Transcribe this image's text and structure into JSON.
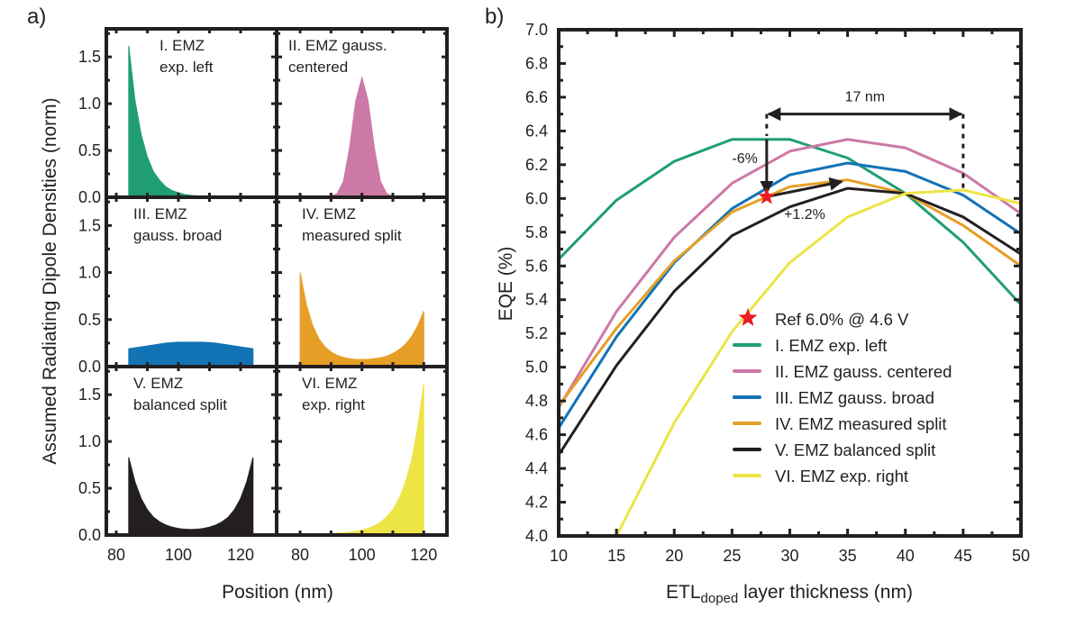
{
  "chart_data": [
    {
      "panel_label": "a)",
      "type": "area",
      "ylabel": "Assumed Radiating Dipole Densities (norm)",
      "xlabel": "Position (nm)",
      "yticks": [
        "0.0",
        "0.5",
        "1.0",
        "1.5"
      ],
      "ytick_values": [
        0,
        0.5,
        1.0,
        1.5
      ],
      "xticks": [
        "80",
        "100",
        "120"
      ],
      "xtick_values": [
        80,
        100,
        120
      ],
      "ylim": [
        0,
        1.8
      ],
      "xlim_left_column": [
        76.8,
        131.6
      ],
      "xlim_right_column": [
        72.4,
        127.5
      ],
      "subplots": [
        {
          "label_lines": [
            "I. EMZ",
            "exp. left"
          ],
          "color": "#1f9e74",
          "x": [
            84,
            86,
            88,
            90,
            92,
            94,
            96,
            98,
            100,
            102,
            104,
            106,
            108,
            110,
            112,
            114,
            116,
            118,
            120,
            122,
            124
          ],
          "y": [
            1.62,
            1.04,
            0.67,
            0.43,
            0.27,
            0.18,
            0.11,
            0.07,
            0.05,
            0.03,
            0.02,
            0.015,
            0.012,
            0.01,
            0.01,
            0.01,
            0.01,
            0.01,
            0.01,
            0.01,
            0.01
          ]
        },
        {
          "label_lines": [
            "II. EMZ gauss.",
            "centered"
          ],
          "color": "#cc79a7",
          "x": [
            80,
            82,
            84,
            86,
            88,
            90,
            92,
            94,
            96,
            98,
            100,
            102,
            104,
            106,
            108,
            110,
            112,
            114,
            116,
            118,
            120
          ],
          "y": [
            0.01,
            0.01,
            0.01,
            0.01,
            0.01,
            0.01,
            0.04,
            0.17,
            0.53,
            1.03,
            1.28,
            1.03,
            0.53,
            0.17,
            0.04,
            0.01,
            0.01,
            0.01,
            0.01,
            0.01,
            0.01
          ]
        },
        {
          "label_lines": [
            "III. EMZ",
            "gauss. broad"
          ],
          "color": "#1273b5",
          "x": [
            84,
            88,
            92,
            96,
            100,
            104,
            108,
            112,
            116,
            120,
            124
          ],
          "y": [
            0.19,
            0.21,
            0.23,
            0.25,
            0.26,
            0.26,
            0.26,
            0.25,
            0.23,
            0.21,
            0.19
          ]
        },
        {
          "label_lines": [
            "IV. EMZ",
            "measured split"
          ],
          "color": "#e69f26",
          "x": [
            80,
            82,
            84,
            86,
            88,
            90,
            92,
            94,
            96,
            98,
            100,
            102,
            104,
            106,
            108,
            110,
            112,
            114,
            116,
            118,
            120
          ],
          "y": [
            1.0,
            0.66,
            0.44,
            0.3,
            0.21,
            0.155,
            0.12,
            0.097,
            0.084,
            0.077,
            0.075,
            0.078,
            0.085,
            0.095,
            0.11,
            0.14,
            0.18,
            0.235,
            0.315,
            0.43,
            0.59
          ]
        },
        {
          "label_lines": [
            "V. EMZ",
            "balanced split"
          ],
          "color": "#231f20",
          "x": [
            84,
            86,
            88,
            90,
            92,
            94,
            96,
            98,
            100,
            102,
            104,
            106,
            108,
            110,
            112,
            114,
            116,
            118,
            120,
            122,
            124
          ],
          "y": [
            0.83,
            0.57,
            0.39,
            0.27,
            0.19,
            0.14,
            0.106,
            0.084,
            0.07,
            0.062,
            0.059,
            0.062,
            0.07,
            0.084,
            0.106,
            0.14,
            0.19,
            0.27,
            0.39,
            0.57,
            0.83
          ]
        },
        {
          "label_lines": [
            "VI. EMZ",
            "exp. right"
          ],
          "color": "#ede445",
          "x": [
            80,
            82,
            84,
            86,
            88,
            90,
            92,
            94,
            96,
            98,
            100,
            102,
            104,
            106,
            108,
            110,
            112,
            114,
            116,
            118,
            120
          ],
          "y": [
            0.01,
            0.01,
            0.01,
            0.01,
            0.015,
            0.017,
            0.02,
            0.024,
            0.031,
            0.04,
            0.053,
            0.071,
            0.098,
            0.137,
            0.193,
            0.273,
            0.389,
            0.555,
            0.79,
            1.14,
            1.62
          ]
        }
      ]
    },
    {
      "panel_label": "b)",
      "type": "line",
      "xlabel_main": "ETL",
      "xlabel_sub": "doped",
      "xlabel_rest": " layer thickness (nm)",
      "ylabel": "EQE (%)",
      "xlim": [
        10,
        50
      ],
      "ylim": [
        4.0,
        7.0
      ],
      "xticks": [
        "10",
        "15",
        "20",
        "25",
        "30",
        "35",
        "40",
        "45",
        "50"
      ],
      "yticks": [
        "4.0",
        "4.2",
        "4.4",
        "4.6",
        "4.8",
        "5.0",
        "5.2",
        "5.4",
        "5.6",
        "5.8",
        "6.0",
        "6.2",
        "6.4",
        "6.6",
        "6.8",
        "7.0"
      ],
      "legend_position": "bottom-right",
      "series": [
        {
          "name": "I. EMZ exp. left",
          "color": "#1f9e74",
          "x": [
            10,
            15,
            20,
            25,
            30,
            35,
            40,
            45,
            50
          ],
          "y": [
            5.64,
            5.99,
            6.22,
            6.35,
            6.35,
            6.24,
            6.03,
            5.74,
            5.37
          ]
        },
        {
          "name": "II. EMZ gauss. centered",
          "color": "#cc79a7",
          "x": [
            10,
            15,
            20,
            25,
            30,
            35,
            40,
            45,
            50
          ],
          "y": [
            4.76,
            5.33,
            5.77,
            6.09,
            6.28,
            6.35,
            6.3,
            6.15,
            5.91
          ]
        },
        {
          "name": "III. EMZ gauss. broad",
          "color": "#1273b5",
          "x": [
            10,
            15,
            20,
            25,
            30,
            35,
            40,
            45,
            50
          ],
          "y": [
            4.64,
            5.18,
            5.62,
            5.94,
            6.14,
            6.21,
            6.16,
            6.02,
            5.79
          ]
        },
        {
          "name": "IV. EMZ measured split",
          "color": "#e69f26",
          "x": [
            10,
            15,
            20,
            25,
            30,
            35,
            40,
            45,
            50
          ],
          "y": [
            4.77,
            5.23,
            5.63,
            5.92,
            6.07,
            6.11,
            6.03,
            5.84,
            5.6
          ]
        },
        {
          "name": "V. EMZ balanced split",
          "color": "#231f20",
          "x": [
            10,
            15,
            20,
            25,
            30,
            35,
            40,
            45,
            50
          ],
          "y": [
            4.48,
            5.01,
            5.45,
            5.78,
            5.95,
            6.06,
            6.03,
            5.89,
            5.67
          ]
        },
        {
          "name": "VI. EMZ exp. right",
          "color": "#ede445",
          "x": [
            15,
            20,
            25,
            30,
            35,
            40,
            45,
            50
          ],
          "y": [
            4.0,
            4.67,
            5.21,
            5.62,
            5.89,
            6.03,
            6.05,
            5.97
          ]
        }
      ],
      "reference": {
        "name": "Ref 6.0% @ 4.6 V",
        "x": 28,
        "y": 6.01,
        "color": "#ed1c24"
      },
      "annotations": {
        "span_label": "17 nm",
        "span_from": 28,
        "span_to": 45,
        "span_y": 6.5,
        "drop_label": "-6%",
        "drop_from": 6.35,
        "gain_label": "+1.2%",
        "gain_to_x": 34.5,
        "gain_to_y": 6.1
      }
    }
  ]
}
